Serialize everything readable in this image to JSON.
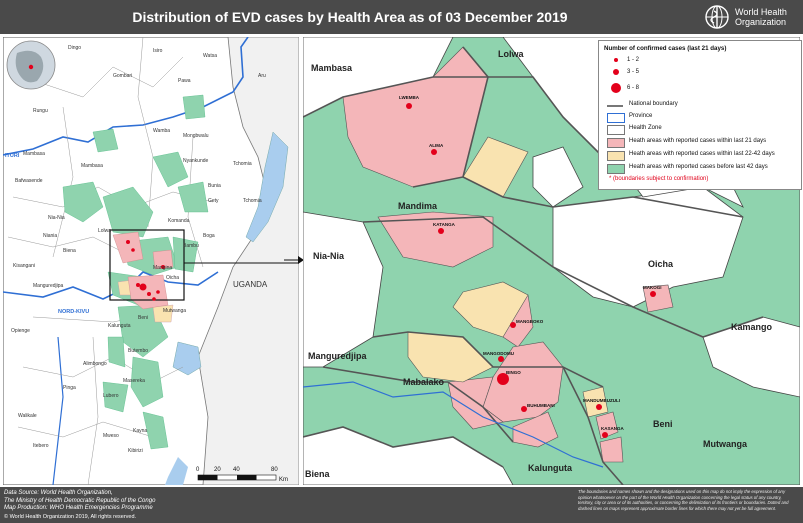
{
  "title": "Distribution of EVD cases by Health Area as of 03 December 2019",
  "who": {
    "line1": "World Health",
    "line2": "Organization"
  },
  "overview_map": {
    "country_labels": [
      "UGANDA",
      "NORD-KIVU",
      "ITURI"
    ],
    "places": [
      "Dingo",
      "Gombari",
      "Wamba",
      "Rungu",
      "Nia-Nia",
      "Mambasa",
      "Komanda",
      "Bunia",
      "Mangina",
      "Oicha",
      "Beni",
      "Butembo",
      "Kalunguta",
      "Mutwanga",
      "Mambasa",
      "Opienge",
      "Manguredjipa",
      "Biena",
      "Masereka",
      "Lubero",
      "Alimbongo",
      "Kayna",
      "Kibirizi",
      "Pinga",
      "Walikale",
      "Mweso",
      "Itebero",
      "Kisangani",
      "Bafwasende",
      "Tchomia",
      "Nyankunde",
      "Gety",
      "Lolwa",
      "Watsa",
      "Isiro",
      "Pawa",
      "Mongbwalu",
      "Niania",
      "Aru",
      "Boga",
      "Bambu",
      "Tchomia"
    ],
    "scale": {
      "ticks": [
        "0",
        "20",
        "40",
        "80"
      ],
      "unit": "Km"
    }
  },
  "main_map": {
    "regions": [
      "Mambasa",
      "Lolwa",
      "Mandima",
      "Nia-Nia",
      "Oicha",
      "Kamango",
      "Manguredjipa",
      "Mabalako",
      "Beni",
      "Mutwanga",
      "Kalunguta",
      "Biena"
    ],
    "health_areas": [
      {
        "name": "LWEMBA",
        "cases": "1-2"
      },
      {
        "name": "ALIMA",
        "cases": "1-2"
      },
      {
        "name": "KATANGA",
        "cases": "1-2"
      },
      {
        "name": "MANGBOKO",
        "cases": "1-2"
      },
      {
        "name": "MAKOGI",
        "cases": "1-2"
      },
      {
        "name": "MANGODOMU",
        "cases": "1-2"
      },
      {
        "name": "BINGO",
        "cases": "6-8"
      },
      {
        "name": "BUHUMBANI",
        "cases": "1-2"
      },
      {
        "name": "MANDUMBUZULI",
        "cases": "1-2"
      },
      {
        "name": "KASANGA",
        "cases": "1-2"
      }
    ]
  },
  "legend": {
    "heading": "Number of confirmed cases (last 21 days)",
    "size_classes": [
      "1 - 2",
      "3 - 5",
      "6 - 8"
    ],
    "items": [
      {
        "label": "National boundary"
      },
      {
        "label": "Province"
      },
      {
        "label": "Health Zone"
      },
      {
        "label": "Heath areas with reported cases within last 21 days"
      },
      {
        "label": "Heath areas with reported cases within last 22-42 days"
      },
      {
        "label": "Heath areas with reported cases before last 42 days"
      }
    ],
    "note": "* (boundaries subject to confirmation)"
  },
  "colors": {
    "last21": "#f4b6b9",
    "d22_42": "#f9e3b0",
    "before42": "#8fd3ae",
    "province": "#2f6fd4",
    "dot": "#e3001b",
    "water": "#a9cdee",
    "bar": "#4a4a4a"
  },
  "footer": {
    "source_line1": "Data Source: World Health Organization,",
    "source_line2": "The Ministry of Health Democratic Republic of the Congo",
    "source_line3": "Map Production: WHO Health Emergencies Programme",
    "copyright": "© World Health Organization 2019, All rights reserved.",
    "disclaimer": "The boundaries and names shown and the designations used on this map do not imply the expression of any opinion whatsoever on the part of the World Health Organization concerning the legal status of any country, territory, city or area or of its authorities, or concerning the delimitation of its frontiers or boundaries. Dotted and dashed lines on maps represent approximate border lines for which there may not yet be full agreement."
  }
}
